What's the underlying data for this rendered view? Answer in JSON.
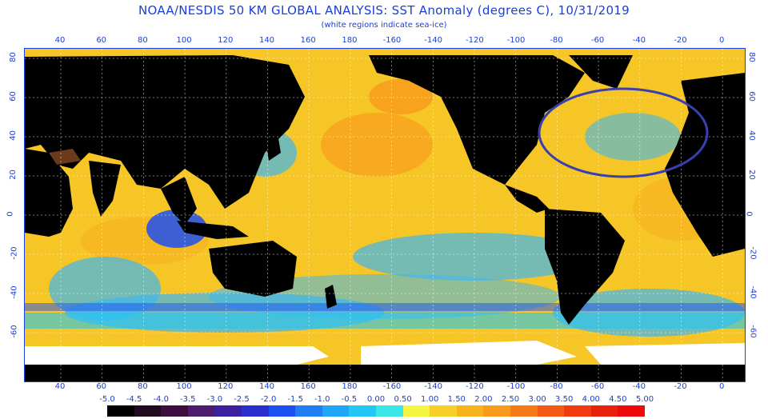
{
  "title": "NOAA/NESDIS 50 KM GLOBAL ANALYSIS: SST Anomaly (degrees C), 10/31/2019",
  "subtitle": "(white regions indicate sea-ice)",
  "x_ticks": [
    "40",
    "60",
    "80",
    "100",
    "120",
    "140",
    "160",
    "180",
    "-160",
    "-140",
    "-120",
    "-100",
    "-80",
    "-60",
    "-40",
    "-20",
    "0"
  ],
  "y_ticks": [
    "80",
    "60",
    "40",
    "20",
    "0",
    "-20",
    "-40",
    "-60"
  ],
  "legend": {
    "values": [
      "-5.0",
      "-4.5",
      "-4.0",
      "-3.5",
      "-3.0",
      "-2.5",
      "-2.0",
      "-1.5",
      "-1.0",
      "-0.5",
      "0.00",
      "0.50",
      "1.00",
      "1.50",
      "2.00",
      "2.50",
      "3.00",
      "3.50",
      "4.00",
      "4.50",
      "5.00"
    ],
    "colors": [
      "#000000",
      "#1f0a1e",
      "#3d0d3f",
      "#4d1a6f",
      "#3c1f9e",
      "#2a2fcf",
      "#1d4ff0",
      "#1e7ef2",
      "#1fa6f5",
      "#23c7f5",
      "#38e6e8",
      "#f4f442",
      "#f7cf28",
      "#f8b41f",
      "#f89a1c",
      "#f77a18",
      "#f55a14",
      "#f23a10",
      "#e8200c",
      "#ee0a0a"
    ]
  },
  "annotation": {
    "shape": "ellipse",
    "color": "#3a3fb0",
    "region": "North Atlantic"
  },
  "colors": {
    "land": "#000000",
    "sea_ice": "#ffffff",
    "ocean_warm": "#f6c526",
    "ocean_cool": "#3fb6f0",
    "axis": "#1a3fd8"
  }
}
